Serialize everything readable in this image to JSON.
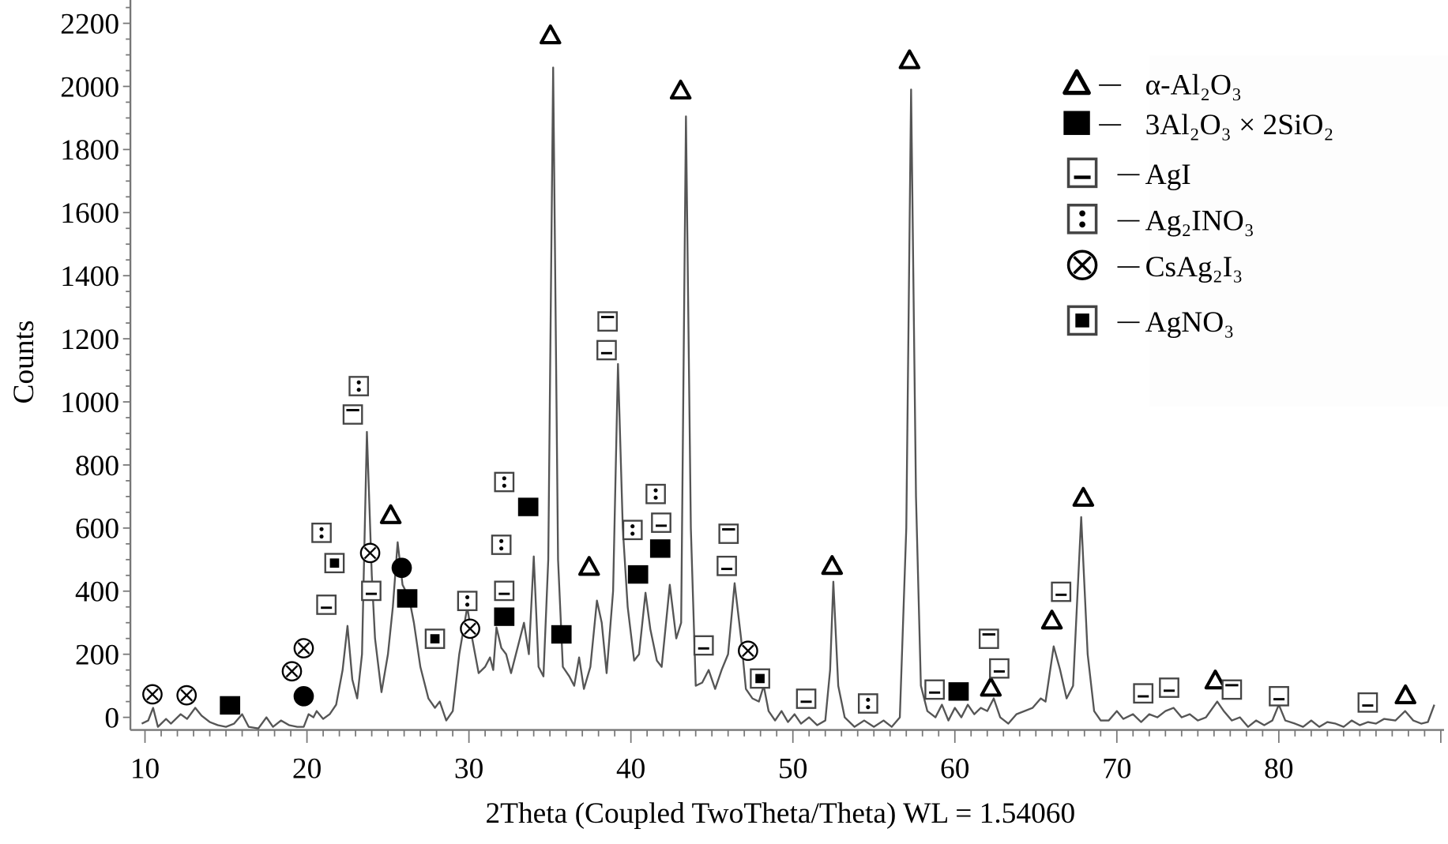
{
  "chart_data": {
    "type": "line",
    "title": "",
    "xlabel": "2Theta (Coupled TwoTheta/Theta) WL = 1.54060",
    "ylabel": "Counts",
    "xlim": [
      9.1,
      90.2
    ],
    "ylim": [
      -40,
      2270
    ],
    "xticks": [
      10,
      20,
      30,
      40,
      50,
      60,
      70,
      80
    ],
    "yticks": [
      0,
      200,
      400,
      600,
      800,
      1000,
      1200,
      1400,
      1600,
      1800,
      2000,
      2200
    ],
    "grid": false,
    "legend_position": "top-right",
    "line_color": "#555555",
    "series": [
      {
        "points": [
          [
            9.8,
            -20
          ],
          [
            10.2,
            -10
          ],
          [
            10.5,
            30
          ],
          [
            10.8,
            -30
          ],
          [
            11.3,
            -5
          ],
          [
            11.6,
            -20
          ],
          [
            12.2,
            10
          ],
          [
            12.6,
            -5
          ],
          [
            13.1,
            30
          ],
          [
            13.5,
            5
          ],
          [
            14,
            -15
          ],
          [
            14.5,
            -25
          ],
          [
            15,
            -30
          ],
          [
            15.5,
            -20
          ],
          [
            16,
            10
          ],
          [
            16.4,
            -30
          ],
          [
            17,
            -35
          ],
          [
            17.5,
            0
          ],
          [
            17.9,
            -30
          ],
          [
            18.4,
            -10
          ],
          [
            18.9,
            -25
          ],
          [
            19.4,
            -30
          ],
          [
            19.8,
            -30
          ],
          [
            20.1,
            10
          ],
          [
            20.4,
            0
          ],
          [
            20.6,
            20
          ],
          [
            21,
            -5
          ],
          [
            21.4,
            10
          ],
          [
            21.8,
            40
          ],
          [
            22.2,
            150
          ],
          [
            22.5,
            290
          ],
          [
            22.8,
            120
          ],
          [
            23.1,
            60
          ],
          [
            23.4,
            200
          ],
          [
            23.7,
            905
          ],
          [
            24,
            450
          ],
          [
            24.2,
            250
          ],
          [
            24.6,
            80
          ],
          [
            25,
            200
          ],
          [
            25.3,
            350
          ],
          [
            25.6,
            555
          ],
          [
            25.9,
            420
          ],
          [
            26.3,
            380
          ],
          [
            26.6,
            300
          ],
          [
            27,
            160
          ],
          [
            27.5,
            60
          ],
          [
            27.9,
            30
          ],
          [
            28.2,
            50
          ],
          [
            28.6,
            -10
          ],
          [
            29,
            20
          ],
          [
            29.4,
            200
          ],
          [
            29.9,
            350
          ],
          [
            30.2,
            250
          ],
          [
            30.6,
            140
          ],
          [
            31,
            160
          ],
          [
            31.3,
            190
          ],
          [
            31.5,
            150
          ],
          [
            31.7,
            285
          ],
          [
            32,
            220
          ],
          [
            32.3,
            200
          ],
          [
            32.6,
            140
          ],
          [
            33,
            220
          ],
          [
            33.4,
            300
          ],
          [
            33.7,
            200
          ],
          [
            34,
            510
          ],
          [
            34.3,
            160
          ],
          [
            34.6,
            130
          ],
          [
            34.9,
            500
          ],
          [
            35.2,
            2060
          ],
          [
            35.5,
            500
          ],
          [
            35.8,
            160
          ],
          [
            36.2,
            130
          ],
          [
            36.5,
            100
          ],
          [
            36.8,
            190
          ],
          [
            37.1,
            90
          ],
          [
            37.5,
            160
          ],
          [
            37.9,
            370
          ],
          [
            38.2,
            300
          ],
          [
            38.5,
            140
          ],
          [
            38.9,
            400
          ],
          [
            39.2,
            1120
          ],
          [
            39.5,
            600
          ],
          [
            39.8,
            350
          ],
          [
            40.2,
            180
          ],
          [
            40.5,
            200
          ],
          [
            40.9,
            395
          ],
          [
            41.2,
            280
          ],
          [
            41.6,
            180
          ],
          [
            41.9,
            160
          ],
          [
            42.4,
            420
          ],
          [
            42.8,
            250
          ],
          [
            43.1,
            300
          ],
          [
            43.4,
            1905
          ],
          [
            43.7,
            600
          ],
          [
            44,
            100
          ],
          [
            44.4,
            110
          ],
          [
            44.8,
            150
          ],
          [
            45.2,
            90
          ],
          [
            45.6,
            150
          ],
          [
            46,
            200
          ],
          [
            46.4,
            425
          ],
          [
            46.8,
            250
          ],
          [
            47.1,
            90
          ],
          [
            47.5,
            60
          ],
          [
            47.9,
            50
          ],
          [
            48.2,
            100
          ],
          [
            48.5,
            20
          ],
          [
            48.9,
            -10
          ],
          [
            49.3,
            20
          ],
          [
            49.7,
            -15
          ],
          [
            50.1,
            10
          ],
          [
            50.5,
            -20
          ],
          [
            51,
            0
          ],
          [
            51.5,
            -25
          ],
          [
            52,
            -10
          ],
          [
            52.3,
            150
          ],
          [
            52.5,
            430
          ],
          [
            52.8,
            100
          ],
          [
            53.2,
            0
          ],
          [
            53.8,
            -30
          ],
          [
            54.4,
            -10
          ],
          [
            55,
            -30
          ],
          [
            55.6,
            -10
          ],
          [
            56.1,
            -30
          ],
          [
            56.6,
            0
          ],
          [
            57,
            600
          ],
          [
            57.3,
            1990
          ],
          [
            57.6,
            700
          ],
          [
            57.9,
            100
          ],
          [
            58.3,
            20
          ],
          [
            58.8,
            0
          ],
          [
            59.2,
            40
          ],
          [
            59.6,
            -10
          ],
          [
            60,
            30
          ],
          [
            60.4,
            0
          ],
          [
            60.8,
            40
          ],
          [
            61.2,
            10
          ],
          [
            61.6,
            30
          ],
          [
            62,
            20
          ],
          [
            62.4,
            60
          ],
          [
            62.8,
            0
          ],
          [
            63.3,
            -20
          ],
          [
            63.8,
            10
          ],
          [
            64.3,
            20
          ],
          [
            64.8,
            30
          ],
          [
            65.3,
            60
          ],
          [
            65.6,
            50
          ],
          [
            66.1,
            225
          ],
          [
            66.5,
            150
          ],
          [
            66.9,
            60
          ],
          [
            67.3,
            100
          ],
          [
            67.8,
            635
          ],
          [
            68.2,
            200
          ],
          [
            68.6,
            20
          ],
          [
            69,
            -10
          ],
          [
            69.5,
            -10
          ],
          [
            70,
            20
          ],
          [
            70.4,
            -5
          ],
          [
            71,
            10
          ],
          [
            71.5,
            -15
          ],
          [
            72,
            10
          ],
          [
            72.5,
            0
          ],
          [
            73,
            20
          ],
          [
            73.5,
            30
          ],
          [
            74,
            0
          ],
          [
            74.5,
            10
          ],
          [
            75,
            -10
          ],
          [
            75.5,
            0
          ],
          [
            76.2,
            50
          ],
          [
            76.6,
            20
          ],
          [
            77.1,
            -10
          ],
          [
            77.6,
            0
          ],
          [
            78.1,
            -30
          ],
          [
            78.6,
            -10
          ],
          [
            79.1,
            -25
          ],
          [
            79.6,
            -10
          ],
          [
            80,
            40
          ],
          [
            80.4,
            -10
          ],
          [
            81,
            -20
          ],
          [
            81.5,
            -30
          ],
          [
            82,
            -10
          ],
          [
            82.5,
            -30
          ],
          [
            83,
            -15
          ],
          [
            83.5,
            -20
          ],
          [
            84,
            -30
          ],
          [
            84.5,
            -10
          ],
          [
            85,
            -25
          ],
          [
            85.5,
            -15
          ],
          [
            86,
            -20
          ],
          [
            86.5,
            -5
          ],
          [
            87.2,
            -10
          ],
          [
            87.8,
            20
          ],
          [
            88.3,
            -10
          ],
          [
            88.8,
            -20
          ],
          [
            89.2,
            -15
          ],
          [
            89.6,
            40
          ]
        ]
      }
    ],
    "legend": [
      {
        "symbol": "triangle",
        "label": "α-Al₂O₃"
      },
      {
        "symbol": "filled-square",
        "label": "3Al₂O₃ × 2SiO₂"
      },
      {
        "symbol": "box-bar",
        "label": "AgI"
      },
      {
        "symbol": "box-dots",
        "label": "Ag₂INO₃"
      },
      {
        "symbol": "circle-cross",
        "label": "CsAg₂I₃"
      },
      {
        "symbol": "box-square",
        "label": "AgNO₃"
      }
    ],
    "peak_markers": [
      {
        "symbol": "circle-cross",
        "x": 10.46,
        "y": 73
      },
      {
        "symbol": "circle-cross",
        "x": 12.57,
        "y": 70
      },
      {
        "symbol": "filled-square",
        "x": 15.25,
        "y": 38
      },
      {
        "symbol": "circle-cross",
        "x": 19.07,
        "y": 146
      },
      {
        "symbol": "circle-cross",
        "x": 19.8,
        "y": 219
      },
      {
        "symbol": "filled-circle",
        "x": 19.8,
        "y": 67
      },
      {
        "symbol": "box-bar",
        "x": 21.2,
        "y": 357
      },
      {
        "symbol": "box-dots",
        "x": 20.9,
        "y": 585
      },
      {
        "symbol": "box-square",
        "x": 21.7,
        "y": 489
      },
      {
        "symbol": "box-bar-top",
        "x": 22.83,
        "y": 960
      },
      {
        "symbol": "box-dots",
        "x": 23.2,
        "y": 1050
      },
      {
        "symbol": "circle-cross",
        "x": 23.9,
        "y": 521
      },
      {
        "symbol": "box-bar",
        "x": 23.97,
        "y": 401
      },
      {
        "symbol": "triangle",
        "x": 25.17,
        "y": 641
      },
      {
        "symbol": "filled-circle",
        "x": 25.85,
        "y": 474
      },
      {
        "symbol": "filled-square",
        "x": 26.19,
        "y": 377
      },
      {
        "symbol": "box-square",
        "x": 27.9,
        "y": 249
      },
      {
        "symbol": "box-dots",
        "x": 29.9,
        "y": 369
      },
      {
        "symbol": "circle-cross",
        "x": 30.07,
        "y": 281
      },
      {
        "symbol": "filled-square",
        "x": 32.18,
        "y": 319
      },
      {
        "symbol": "box-bar",
        "x": 32.18,
        "y": 401
      },
      {
        "symbol": "box-dots",
        "x": 32.0,
        "y": 547
      },
      {
        "symbol": "box-dots",
        "x": 32.18,
        "y": 746
      },
      {
        "symbol": "filled-square",
        "x": 33.66,
        "y": 667
      },
      {
        "symbol": "triangle",
        "x": 35.03,
        "y": 2162
      },
      {
        "symbol": "filled-square",
        "x": 35.71,
        "y": 263
      },
      {
        "symbol": "triangle",
        "x": 37.42,
        "y": 477
      },
      {
        "symbol": "box-bar",
        "x": 38.5,
        "y": 1164
      },
      {
        "symbol": "box-bar-top",
        "x": 38.56,
        "y": 1255
      },
      {
        "symbol": "box-dots",
        "x": 40.1,
        "y": 594
      },
      {
        "symbol": "filled-square",
        "x": 40.44,
        "y": 453
      },
      {
        "symbol": "box-dots",
        "x": 41.53,
        "y": 708
      },
      {
        "symbol": "box-bar",
        "x": 41.87,
        "y": 617
      },
      {
        "symbol": "filled-square",
        "x": 41.81,
        "y": 535
      },
      {
        "symbol": "triangle",
        "x": 43.07,
        "y": 1987
      },
      {
        "symbol": "box-bar",
        "x": 44.49,
        "y": 228
      },
      {
        "symbol": "box-bar-top",
        "x": 46.03,
        "y": 582
      },
      {
        "symbol": "box-bar",
        "x": 45.92,
        "y": 480
      },
      {
        "symbol": "circle-cross",
        "x": 47.23,
        "y": 211
      },
      {
        "symbol": "box-square",
        "x": 47.97,
        "y": 123
      },
      {
        "symbol": "box-bar",
        "x": 50.82,
        "y": 59
      },
      {
        "symbol": "triangle",
        "x": 52.42,
        "y": 480
      },
      {
        "symbol": "box-dots",
        "x": 54.64,
        "y": 44
      },
      {
        "symbol": "triangle",
        "x": 57.2,
        "y": 2083
      },
      {
        "symbol": "box-bar",
        "x": 58.75,
        "y": 88
      },
      {
        "symbol": "filled-square",
        "x": 60.23,
        "y": 82
      },
      {
        "symbol": "triangle",
        "x": 62.22,
        "y": 94
      },
      {
        "symbol": "box-bar-top",
        "x": 62.1,
        "y": 249
      },
      {
        "symbol": "box-bar",
        "x": 62.74,
        "y": 155
      },
      {
        "symbol": "triangle",
        "x": 65.99,
        "y": 307
      },
      {
        "symbol": "box-bar",
        "x": 66.56,
        "y": 398
      },
      {
        "symbol": "triangle",
        "x": 67.93,
        "y": 696
      },
      {
        "symbol": "box-bar",
        "x": 71.63,
        "y": 76
      },
      {
        "symbol": "box-bar",
        "x": 73.23,
        "y": 94
      },
      {
        "symbol": "triangle",
        "x": 76.08,
        "y": 117
      },
      {
        "symbol": "box-bar-top",
        "x": 77.1,
        "y": 88
      },
      {
        "symbol": "box-bar",
        "x": 80.01,
        "y": 67
      },
      {
        "symbol": "box-bar",
        "x": 85.49,
        "y": 47
      },
      {
        "symbol": "triangle",
        "x": 87.82,
        "y": 70
      }
    ]
  }
}
